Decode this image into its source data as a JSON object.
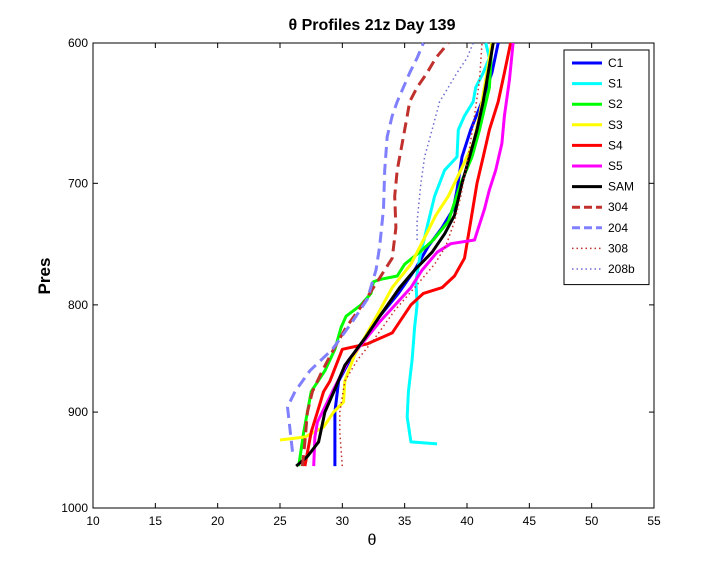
{
  "chart_data": {
    "type": "line",
    "title": "θ Profiles 21z Day 139",
    "xlabel": "θ",
    "ylabel": "Pres",
    "xlim": [
      10,
      55
    ],
    "ylim": [
      600,
      1000
    ],
    "y_scale": "log",
    "y_reversed": true,
    "grid": false,
    "legend_position": "top-right",
    "x_ticks": [
      10,
      15,
      20,
      25,
      30,
      35,
      40,
      45,
      50,
      55
    ],
    "y_ticks": [
      600,
      700,
      800,
      900,
      1000
    ],
    "series": [
      {
        "name": "C1",
        "color": "#0000ff",
        "dash": "solid",
        "x": [
          29.4,
          29.4,
          29.7,
          30.6,
          31.8,
          33.0,
          34.5,
          35.8,
          36.9,
          38.0,
          38.9,
          39.2,
          39.6,
          40.3,
          41.2,
          42.0,
          42.5
        ],
        "y": [
          955,
          900,
          870,
          850,
          830,
          810,
          790,
          770,
          750,
          735,
          720,
          705,
          680,
          660,
          640,
          620,
          600
        ]
      },
      {
        "name": "S1",
        "color": "#00ffff",
        "dash": "solid",
        "x": [
          37.6,
          35.5,
          35.2,
          35.3,
          35.6,
          35.8,
          36.0,
          35.9,
          36.2,
          36.9,
          37.4,
          38.2,
          39.2,
          39.3,
          39.8,
          40.5,
          40.7,
          41.3,
          41.8,
          41.5
        ],
        "y": [
          932,
          930,
          905,
          880,
          850,
          820,
          800,
          780,
          760,
          730,
          710,
          690,
          680,
          660,
          650,
          640,
          630,
          620,
          610,
          600
        ]
      },
      {
        "name": "S2",
        "color": "#00ff00",
        "dash": "solid",
        "x": [
          26.5,
          26.9,
          27.5,
          28.6,
          29.4,
          29.9,
          30.3,
          31.5,
          32.3,
          32.5,
          33.0,
          34.4,
          35.0,
          36.2,
          37.3,
          38.5,
          39.5,
          40.4,
          41.0,
          41.8,
          42.0
        ],
        "y": [
          955,
          920,
          880,
          860,
          840,
          820,
          810,
          800,
          790,
          780,
          778,
          775,
          765,
          755,
          745,
          730,
          700,
          680,
          660,
          630,
          600
        ]
      },
      {
        "name": "S3",
        "color": "#ffff00",
        "dash": "solid",
        "x": [
          25.0,
          27.0,
          28.5,
          29.3,
          30.1,
          30.2,
          30.5,
          31.0,
          32.0,
          33.0,
          34.0,
          35.5,
          36.5,
          37.0,
          37.5,
          38.5,
          39.0,
          39.5,
          40.5,
          41.0,
          41.5,
          42.0
        ],
        "y": [
          928,
          925,
          915,
          900,
          890,
          870,
          860,
          845,
          825,
          805,
          785,
          765,
          745,
          735,
          725,
          710,
          700,
          690,
          670,
          650,
          625,
          600
        ]
      },
      {
        "name": "S4",
        "color": "#ff0000",
        "dash": "solid",
        "x": [
          27.0,
          27.5,
          28.0,
          28.5,
          29.0,
          30.0,
          32.0,
          34.0,
          35.5,
          36.5,
          38.0,
          39.0,
          39.8,
          40.3,
          40.8,
          41.3,
          41.8,
          42.5,
          43.0,
          43.5
        ],
        "y": [
          955,
          920,
          900,
          880,
          870,
          840,
          835,
          825,
          800,
          790,
          785,
          775,
          760,
          730,
          700,
          680,
          660,
          640,
          620,
          600
        ]
      },
      {
        "name": "S5",
        "color": "#ff00ff",
        "dash": "solid",
        "x": [
          27.7,
          27.8,
          28.0,
          29.2,
          30.5,
          33.0,
          35.5,
          36.4,
          37.6,
          38.7,
          40.6,
          41.4,
          41.8,
          42.3,
          42.8,
          43.0,
          43.4,
          43.7
        ],
        "y": [
          955,
          925,
          910,
          880,
          850,
          815,
          785,
          770,
          755,
          748,
          745,
          720,
          705,
          690,
          670,
          650,
          625,
          600
        ]
      },
      {
        "name": "SAM",
        "color": "#000000",
        "dash": "solid",
        "x": [
          26.3,
          27.2,
          28.1,
          28.6,
          29.5,
          30.2,
          31.8,
          33.0,
          34.6,
          35.8,
          37.2,
          38.2,
          39.0,
          39.6,
          40.2,
          40.8,
          41.3,
          41.7,
          42.1
        ],
        "y": [
          955,
          945,
          930,
          900,
          875,
          855,
          830,
          810,
          785,
          770,
          755,
          740,
          725,
          700,
          680,
          660,
          640,
          620,
          600
        ]
      },
      {
        "name": "304",
        "color": "#c0302c",
        "dash": "long",
        "x": [
          26.8,
          27.0,
          27.2,
          27.6,
          28.4,
          29.3,
          30.3,
          31.6,
          32.8,
          34.0,
          34.3,
          34.2,
          34.4,
          34.8,
          35.2,
          35.4,
          36.0,
          36.8,
          37.5,
          38.5
        ],
        "y": [
          955,
          930,
          900,
          880,
          860,
          840,
          820,
          800,
          780,
          760,
          735,
          710,
          690,
          670,
          650,
          640,
          630,
          620,
          610,
          600
        ]
      },
      {
        "name": "204",
        "color": "#8080ff",
        "dash": "long",
        "x": [
          26.0,
          25.6,
          26.2,
          27.4,
          29.2,
          30.8,
          32.0,
          32.7,
          33.0,
          33.3,
          33.4,
          33.6,
          34.0,
          34.4,
          34.9,
          35.4,
          36.0,
          36.5
        ],
        "y": [
          940,
          895,
          880,
          860,
          840,
          815,
          795,
          770,
          750,
          720,
          690,
          665,
          650,
          640,
          630,
          620,
          610,
          600
        ]
      },
      {
        "name": "308",
        "color": "#c0302c",
        "dash": "dot",
        "x": [
          30.0,
          29.8,
          29.8,
          30.2,
          31.2,
          32.6,
          34.2,
          35.8,
          37.4,
          38.3,
          39.0,
          39.5,
          40.1,
          40.6,
          41.0,
          41.2
        ],
        "y": [
          955,
          920,
          900,
          870,
          850,
          830,
          805,
          785,
          765,
          750,
          730,
          710,
          680,
          650,
          625,
          600
        ]
      },
      {
        "name": "208b",
        "color": "#6a6ad0",
        "dash": "dot",
        "x": [
          36.0,
          36.0,
          36.3,
          36.6,
          37.2,
          37.8,
          38.5,
          39.2,
          40.0,
          40.5
        ],
        "y": [
          745,
          730,
          700,
          680,
          660,
          640,
          630,
          620,
          610,
          600
        ]
      }
    ]
  }
}
